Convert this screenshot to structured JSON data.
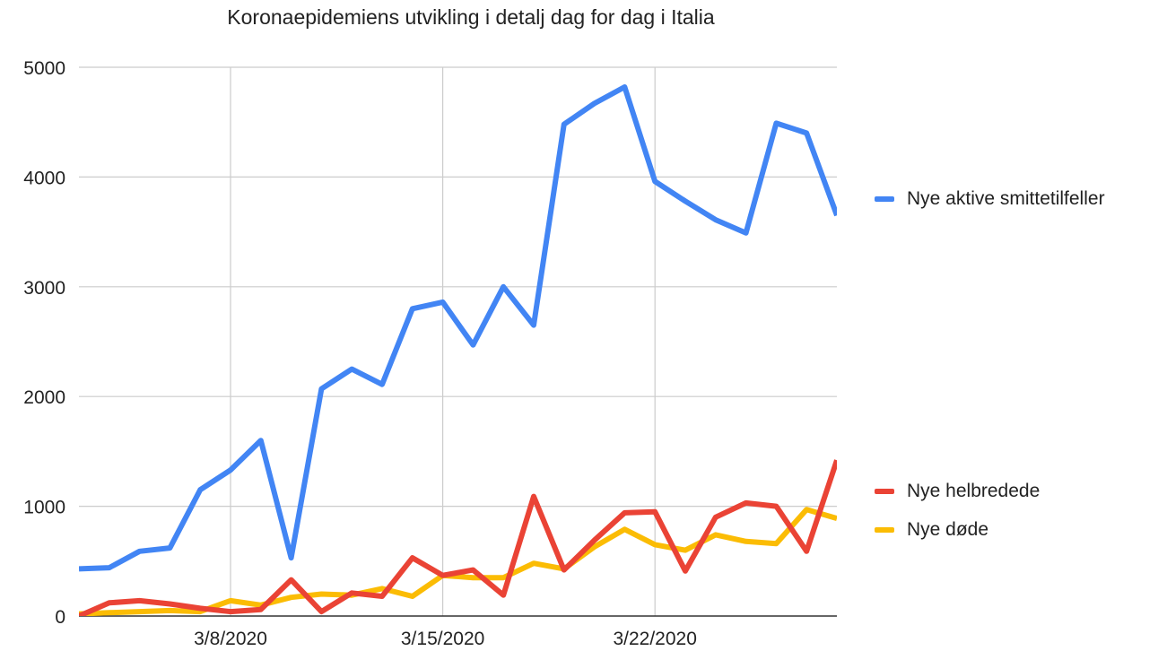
{
  "chart_data": {
    "type": "line",
    "title": "Koronaepidemiens utvikling i detalj dag for dag i Italia",
    "xlabel": "",
    "ylabel": "",
    "ylim": [
      0,
      5000
    ],
    "yticks": [
      0,
      1000,
      2000,
      3000,
      4000,
      5000
    ],
    "x": [
      "3/3/2020",
      "3/4/2020",
      "3/5/2020",
      "3/6/2020",
      "3/7/2020",
      "3/8/2020",
      "3/9/2020",
      "3/10/2020",
      "3/11/2020",
      "3/12/2020",
      "3/13/2020",
      "3/14/2020",
      "3/15/2020",
      "3/16/2020",
      "3/17/2020",
      "3/18/2020",
      "3/19/2020",
      "3/20/2020",
      "3/21/2020",
      "3/22/2020",
      "3/23/2020",
      "3/24/2020",
      "3/25/2020",
      "3/26/2020",
      "3/27/2020",
      "3/28/2020"
    ],
    "xticks": [
      "3/8/2020",
      "3/15/2020",
      "3/22/2020"
    ],
    "grid": true,
    "legend_position": "right",
    "series": [
      {
        "name": "Nye aktive smittetilfeller",
        "color": "#4285f4",
        "values": [
          430,
          440,
          590,
          620,
          1150,
          1330,
          1600,
          530,
          2070,
          2250,
          2110,
          2800,
          2860,
          2470,
          3000,
          2650,
          4480,
          4670,
          4820,
          3960,
          3780,
          3610,
          3490,
          4490,
          4400,
          3650
        ]
      },
      {
        "name": "Nye helbredede",
        "color": "#ea4335",
        "values": [
          0,
          120,
          140,
          110,
          70,
          40,
          60,
          330,
          40,
          210,
          180,
          530,
          370,
          420,
          190,
          1090,
          420,
          690,
          940,
          950,
          410,
          900,
          1030,
          1000,
          590,
          1420
        ]
      },
      {
        "name": "Nye døde",
        "color": "#fbbc04",
        "values": [
          20,
          30,
          40,
          50,
          40,
          140,
          100,
          170,
          200,
          190,
          250,
          180,
          370,
          350,
          350,
          480,
          430,
          630,
          790,
          650,
          600,
          740,
          680,
          660,
          970,
          890
        ]
      }
    ]
  }
}
